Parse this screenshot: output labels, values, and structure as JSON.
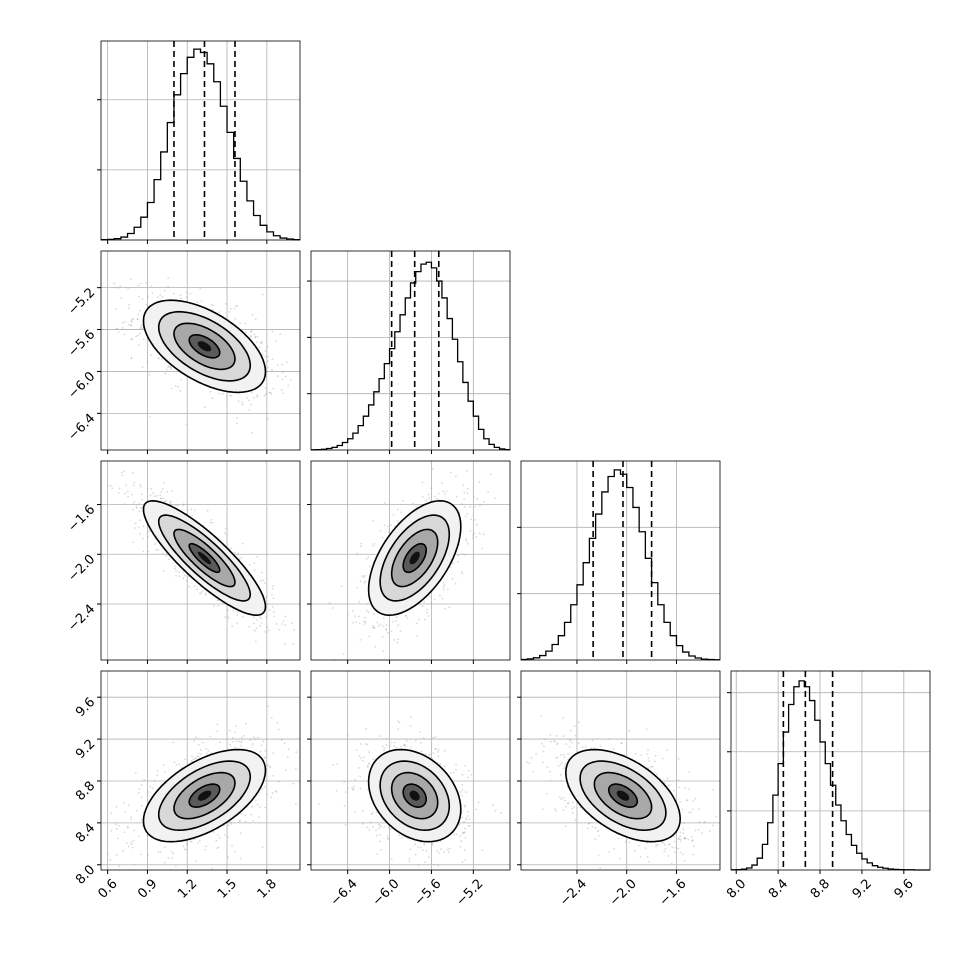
{
  "chart_data": {
    "type": "corner",
    "parameters": [
      {
        "id": "p0",
        "range": [
          0.55,
          2.05
        ],
        "ticks": [
          0.6,
          0.9,
          1.2,
          1.5,
          1.8
        ],
        "tick_labels": [
          "0.6",
          "0.9",
          "1.2",
          "1.5",
          "1.8"
        ],
        "quantiles": [
          1.1,
          1.33,
          1.56
        ]
      },
      {
        "id": "p1",
        "range": [
          -6.75,
          -4.85
        ],
        "ticks": [
          -6.4,
          -6.0,
          -5.6,
          -5.2
        ],
        "tick_labels": [
          "−6.4",
          "−6.0",
          "−5.6",
          "−5.2"
        ],
        "quantiles": [
          -5.98,
          -5.76,
          -5.53
        ]
      },
      {
        "id": "p2",
        "range": [
          -2.85,
          -1.25
        ],
        "ticks": [
          -2.4,
          -2.0,
          -1.6
        ],
        "tick_labels": [
          "−2.4",
          "−2.0",
          "−1.6"
        ],
        "quantiles": [
          -2.27,
          -2.03,
          -1.8
        ]
      },
      {
        "id": "p3",
        "range": [
          7.95,
          9.85
        ],
        "ticks": [
          8.0,
          8.4,
          8.8,
          9.2,
          9.6
        ],
        "tick_labels": [
          "8.0",
          "8.4",
          "8.8",
          "9.2",
          "9.6"
        ],
        "quantiles": [
          8.45,
          8.66,
          8.92
        ]
      }
    ],
    "histograms": [
      {
        "param": "p0",
        "x": [
          0.575,
          0.625,
          0.675,
          0.725,
          0.775,
          0.825,
          0.875,
          0.925,
          0.975,
          1.025,
          1.075,
          1.125,
          1.175,
          1.225,
          1.275,
          1.325,
          1.375,
          1.425,
          1.475,
          1.525,
          1.575,
          1.625,
          1.675,
          1.725,
          1.775,
          1.825,
          1.875,
          1.925,
          1.975,
          2.025
        ],
        "values": [
          2,
          4,
          8,
          18,
          40,
          78,
          140,
          230,
          370,
          540,
          720,
          890,
          1020,
          1120,
          1170,
          1150,
          1080,
          970,
          820,
          660,
          500,
          360,
          240,
          150,
          90,
          50,
          26,
          12,
          6,
          2
        ],
        "ylim": [
          0,
          1220
        ],
        "grid_y": [
          430,
          860
        ]
      },
      {
        "param": "p1",
        "x": [
          -6.725,
          -6.675,
          -6.625,
          -6.575,
          -6.525,
          -6.475,
          -6.425,
          -6.375,
          -6.325,
          -6.275,
          -6.225,
          -6.175,
          -6.125,
          -6.075,
          -6.025,
          -5.975,
          -5.925,
          -5.875,
          -5.825,
          -5.775,
          -5.725,
          -5.675,
          -5.625,
          -5.575,
          -5.525,
          -5.475,
          -5.425,
          -5.375,
          -5.325,
          -5.275,
          -5.225,
          -5.175,
          -5.125,
          -5.075,
          -5.025,
          -4.975,
          -4.925,
          -4.875
        ],
        "values": [
          1,
          2,
          4,
          8,
          14,
          24,
          40,
          60,
          90,
          130,
          180,
          240,
          310,
          380,
          460,
          540,
          630,
          720,
          810,
          890,
          950,
          990,
          1000,
          970,
          900,
          810,
          700,
          590,
          470,
          360,
          260,
          180,
          110,
          60,
          30,
          14,
          6,
          2
        ],
        "ylim": [
          0,
          1060
        ],
        "grid_y": [
          300,
          600,
          900
        ]
      },
      {
        "param": "p2",
        "x": [
          -2.825,
          -2.775,
          -2.725,
          -2.675,
          -2.625,
          -2.575,
          -2.525,
          -2.475,
          -2.425,
          -2.375,
          -2.325,
          -2.275,
          -2.225,
          -2.175,
          -2.125,
          -2.075,
          -2.025,
          -1.975,
          -1.925,
          -1.875,
          -1.825,
          -1.775,
          -1.725,
          -1.675,
          -1.625,
          -1.575,
          -1.525,
          -1.475,
          -1.425,
          -1.375,
          -1.325,
          -1.275
        ],
        "values": [
          2,
          5,
          10,
          20,
          40,
          70,
          110,
          170,
          250,
          340,
          440,
          550,
          660,
          760,
          830,
          860,
          840,
          780,
          690,
          580,
          460,
          350,
          250,
          170,
          110,
          65,
          36,
          18,
          9,
          4,
          2,
          1
        ],
        "ylim": [
          0,
          900
        ],
        "grid_y": [
          300,
          600
        ]
      },
      {
        "param": "p3",
        "x": [
          7.975,
          8.025,
          8.075,
          8.125,
          8.175,
          8.225,
          8.275,
          8.325,
          8.375,
          8.425,
          8.475,
          8.525,
          8.575,
          8.625,
          8.675,
          8.725,
          8.775,
          8.825,
          8.875,
          8.925,
          8.975,
          9.025,
          9.075,
          9.125,
          9.175,
          9.225,
          9.275,
          9.325,
          9.375,
          9.425,
          9.475,
          9.525,
          9.575,
          9.625,
          9.675,
          9.725,
          9.775,
          9.825
        ],
        "values": [
          1,
          2,
          4,
          10,
          25,
          60,
          130,
          240,
          380,
          540,
          700,
          840,
          930,
          960,
          930,
          860,
          760,
          650,
          540,
          430,
          330,
          250,
          180,
          125,
          85,
          56,
          36,
          22,
          14,
          9,
          5,
          3,
          2,
          1,
          1,
          0,
          0,
          0
        ],
        "ylim": [
          0,
          1010
        ],
        "grid_y": [
          300,
          600,
          900
        ]
      }
    ],
    "pairs": [
      {
        "x": "p1",
        "y": "p0",
        "mean": [
          1.33,
          -5.76
        ],
        "sd": [
          0.23,
          0.22
        ],
        "corr": -0.55
      },
      {
        "x": "p2",
        "y": "p0",
        "mean": [
          1.33,
          -2.03
        ],
        "sd": [
          0.23,
          0.23
        ],
        "corr": -0.85
      },
      {
        "x": "p2",
        "y": "p1",
        "mean": [
          -5.76,
          -2.03
        ],
        "sd": [
          0.22,
          0.23
        ],
        "corr": 0.55
      },
      {
        "x": "p3",
        "y": "p0",
        "mean": [
          1.33,
          8.66
        ],
        "sd": [
          0.23,
          0.22
        ],
        "corr": 0.55
      },
      {
        "x": "p3",
        "y": "p1",
        "mean": [
          -5.76,
          8.66
        ],
        "sd": [
          0.22,
          0.22
        ],
        "corr": -0.3
      },
      {
        "x": "p3",
        "y": "p2",
        "mean": [
          -2.03,
          8.66
        ],
        "sd": [
          0.23,
          0.22
        ],
        "corr": -0.5
      }
    ],
    "contour_levels_sigma": [
      0.5,
      1.0,
      1.5,
      2.0
    ],
    "grid": true,
    "samples_shown": true
  }
}
